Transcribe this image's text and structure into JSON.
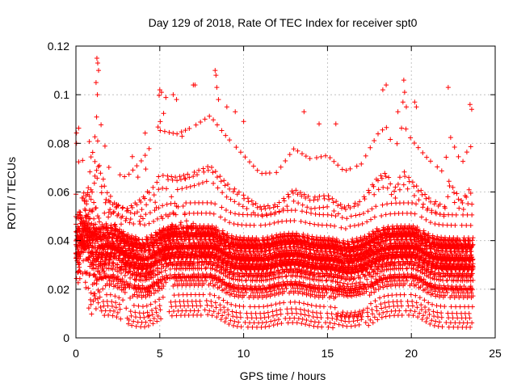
{
  "chart_data": {
    "type": "scatter",
    "title": "Day 129 of 2018, Rate Of TEC Index for receiver spt0",
    "xlabel": "GPS time / hours",
    "ylabel": "ROTI / TECUs",
    "xlim": [
      0,
      25
    ],
    "ylim": [
      0,
      0.12
    ],
    "x_ticks": [
      0,
      5,
      10,
      15,
      20,
      25
    ],
    "x_tick_labels": [
      "0",
      "5",
      "10",
      "15",
      "20",
      "25"
    ],
    "y_ticks": [
      0,
      0.02,
      0.04,
      0.06,
      0.08,
      0.1,
      0.12
    ],
    "y_tick_labels": [
      "0",
      "0.02",
      "0.04",
      "0.06",
      "0.08",
      "0.1",
      "0.12"
    ],
    "grid": true,
    "marker": "+",
    "color": "#ff0000",
    "series": [
      {
        "name": "ROTI",
        "x_range": [
          0,
          23.7
        ],
        "sample_interval_hours": 0.0333,
        "baseline_profile": [
          [
            0,
            0.03
          ],
          [
            1,
            0.035
          ],
          [
            2,
            0.035
          ],
          [
            3,
            0.03
          ],
          [
            4,
            0.03
          ],
          [
            5,
            0.035
          ],
          [
            6,
            0.035
          ],
          [
            7,
            0.035
          ],
          [
            8,
            0.035
          ],
          [
            9,
            0.03
          ],
          [
            10,
            0.03
          ],
          [
            11,
            0.03
          ],
          [
            12,
            0.032
          ],
          [
            13,
            0.032
          ],
          [
            14,
            0.03
          ],
          [
            15,
            0.03
          ],
          [
            16,
            0.028
          ],
          [
            17,
            0.03
          ],
          [
            18,
            0.035
          ],
          [
            19,
            0.035
          ],
          [
            20,
            0.035
          ],
          [
            21,
            0.03
          ],
          [
            22,
            0.03
          ],
          [
            23,
            0.03
          ],
          [
            23.7,
            0.03
          ]
        ],
        "envelope_max": [
          [
            0,
            0.088
          ],
          [
            1,
            0.09
          ],
          [
            1.3,
            0.115
          ],
          [
            2,
            0.08
          ],
          [
            3,
            0.078
          ],
          [
            4,
            0.088
          ],
          [
            5,
            0.102
          ],
          [
            6,
            0.1
          ],
          [
            7,
            0.104
          ],
          [
            8,
            0.11
          ],
          [
            9,
            0.1
          ],
          [
            10,
            0.09
          ],
          [
            11,
            0.08
          ],
          [
            12,
            0.08
          ],
          [
            13,
            0.093
          ],
          [
            14,
            0.088
          ],
          [
            15,
            0.09
          ],
          [
            16,
            0.082
          ],
          [
            17,
            0.085
          ],
          [
            18,
            0.1
          ],
          [
            18.5,
            0.104
          ],
          [
            19,
            0.09
          ],
          [
            19.5,
            0.106
          ],
          [
            20,
            0.097
          ],
          [
            21,
            0.088
          ],
          [
            22,
            0.08
          ],
          [
            22.2,
            0.103
          ],
          [
            23,
            0.085
          ],
          [
            23.5,
            0.096
          ],
          [
            23.7,
            0.09
          ]
        ],
        "outliers": [
          [
            1.25,
            0.115
          ],
          [
            1.3,
            0.113
          ],
          [
            1.35,
            0.11
          ],
          [
            1.2,
            0.105
          ],
          [
            1.28,
            0.1
          ],
          [
            5.0,
            0.102
          ],
          [
            5.1,
            0.101
          ],
          [
            5.8,
            0.1
          ],
          [
            6.0,
            0.098
          ],
          [
            7.0,
            0.104
          ],
          [
            7.1,
            0.104
          ],
          [
            8.3,
            0.11
          ],
          [
            8.35,
            0.108
          ],
          [
            8.4,
            0.103
          ],
          [
            8.5,
            0.098
          ],
          [
            9.0,
            0.095
          ],
          [
            9.5,
            0.093
          ],
          [
            10.0,
            0.089
          ],
          [
            13.6,
            0.093
          ],
          [
            14.5,
            0.088
          ],
          [
            15.5,
            0.088
          ],
          [
            18.3,
            0.102
          ],
          [
            18.5,
            0.104
          ],
          [
            19.2,
            0.093
          ],
          [
            19.55,
            0.106
          ],
          [
            19.6,
            0.101
          ],
          [
            19.5,
            0.097
          ],
          [
            19.7,
            0.095
          ],
          [
            20.2,
            0.097
          ],
          [
            20.3,
            0.095
          ],
          [
            22.2,
            0.103
          ],
          [
            23.5,
            0.096
          ],
          [
            23.6,
            0.094
          ]
        ]
      }
    ]
  }
}
